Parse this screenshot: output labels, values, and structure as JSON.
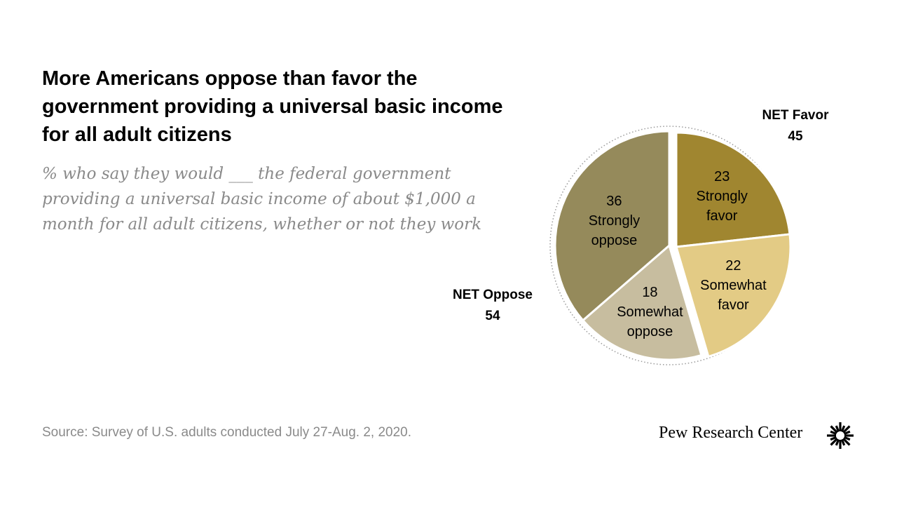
{
  "title": "More Americans oppose than favor the government providing a universal basic income for all adult citizens",
  "subtitle": "% who say they would ___ the federal government providing a universal basic income of about $1,000 a month for all adult citizens, whether or not they work",
  "net_favor": {
    "label": "NET Favor",
    "value": "45"
  },
  "net_oppose": {
    "label": "NET Oppose",
    "value": "54"
  },
  "source": "Source: Survey of U.S. adults conducted July 27-Aug. 2, 2020.",
  "brand": "Pew Research Center",
  "chart_data": {
    "type": "pie",
    "slices": [
      {
        "key": "strongly-favor",
        "value": 23,
        "value_label": "23",
        "label_lines": [
          "Strongly",
          "favor"
        ],
        "color": "#a08630",
        "group": "favor"
      },
      {
        "key": "somewhat-favor",
        "value": 22,
        "value_label": "22",
        "label_lines": [
          "Somewhat",
          "favor"
        ],
        "color": "#e3cb85",
        "group": "favor"
      },
      {
        "key": "somewhat-oppose",
        "value": 18,
        "value_label": "18",
        "label_lines": [
          "Somewhat",
          "oppose"
        ],
        "color": "#c7bd9f",
        "group": "oppose"
      },
      {
        "key": "strongly-oppose",
        "value": 36,
        "value_label": "36",
        "label_lines": [
          "Strongly",
          "oppose"
        ],
        "color": "#958a5b",
        "group": "oppose"
      }
    ]
  }
}
